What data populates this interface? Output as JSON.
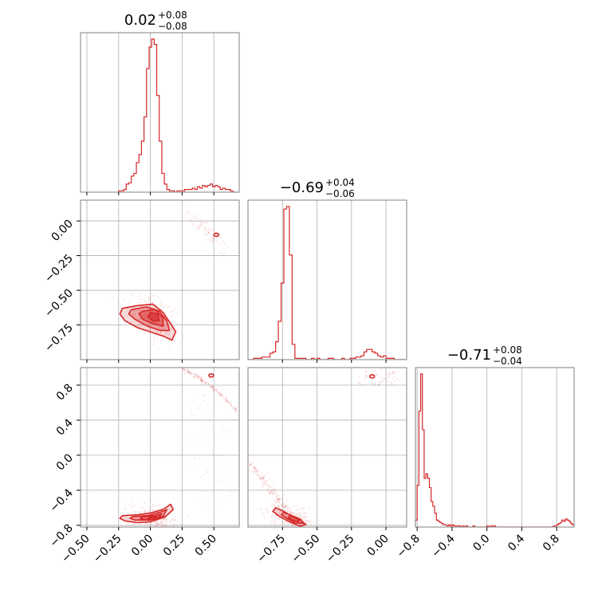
{
  "colors": {
    "series": "#d62728",
    "grid": "#b0b0b0",
    "frame": "#808080"
  },
  "chart_data": {
    "type": "corner",
    "parameters": [
      {
        "title_value": "0.02",
        "title_upper": "+0.08",
        "title_lower": "−0.08"
      },
      {
        "title_value": "−0.69",
        "title_upper": "+0.04",
        "title_lower": "−0.06"
      },
      {
        "title_value": "−0.71",
        "title_upper": "+0.08",
        "title_lower": "−0.04"
      }
    ],
    "axis_ranges": [
      [
        -0.55,
        0.7
      ],
      [
        -1.0,
        0.15
      ],
      [
        -0.82,
        1.0
      ]
    ],
    "grid": true,
    "hist1d": [
      {
        "bins": [
          -0.25,
          -0.23,
          -0.21,
          -0.19,
          -0.17,
          -0.15,
          -0.13,
          -0.11,
          -0.09,
          -0.07,
          -0.05,
          -0.03,
          -0.01,
          0.01,
          0.03,
          0.05,
          0.07,
          0.09,
          0.11,
          0.13,
          0.15,
          0.17,
          0.19,
          0.21,
          0.23,
          0.25,
          0.27,
          0.29,
          0.31,
          0.33,
          0.35,
          0.37,
          0.39,
          0.41,
          0.43,
          0.45,
          0.47,
          0.49,
          0.51,
          0.53,
          0.55,
          0.57,
          0.59,
          0.61,
          0.63,
          0.65,
          0.67
        ],
        "counts": [
          1,
          1,
          2,
          6,
          7,
          12,
          14,
          22,
          28,
          38,
          56,
          92,
          108,
          114,
          110,
          72,
          38,
          14,
          6,
          2,
          1,
          1,
          0,
          1,
          1,
          1,
          2,
          2,
          2,
          3,
          2,
          4,
          3,
          5,
          4,
          5,
          6,
          4,
          5,
          4,
          2,
          3,
          2,
          2,
          1,
          0
        ]
      },
      {
        "bins": [
          -1.0,
          -0.98,
          -0.96,
          -0.94,
          -0.92,
          -0.9,
          -0.88,
          -0.86,
          -0.84,
          -0.82,
          -0.8,
          -0.78,
          -0.76,
          -0.74,
          -0.72,
          -0.7,
          -0.68,
          -0.66,
          -0.64,
          -0.62,
          -0.6,
          -0.58,
          -0.56,
          -0.54,
          -0.52,
          -0.5,
          -0.48,
          -0.46,
          -0.44,
          -0.42,
          -0.4,
          -0.38,
          -0.36,
          -0.34,
          -0.32,
          -0.3,
          -0.28,
          -0.26,
          -0.24,
          -0.22,
          -0.2,
          -0.18,
          -0.16,
          -0.14,
          -0.12,
          -0.1,
          -0.08,
          -0.06,
          -0.04,
          -0.02,
          0.0,
          0.02,
          0.04,
          0.06,
          0.08,
          0.1,
          0.12,
          0.14
        ],
        "counts": [
          0,
          0,
          1,
          1,
          1,
          2,
          2,
          2,
          5,
          6,
          14,
          30,
          60,
          118,
          120,
          82,
          12,
          1,
          1,
          1,
          1,
          0,
          0,
          1,
          0,
          1,
          0,
          0,
          0,
          1,
          1,
          0,
          0,
          0,
          1,
          0,
          0,
          1,
          1,
          2,
          2,
          3,
          6,
          8,
          8,
          6,
          5,
          3,
          2,
          3,
          1,
          1,
          1,
          0,
          0,
          0,
          0
        ]
      },
      {
        "bins": [
          -0.82,
          -0.8,
          -0.78,
          -0.76,
          -0.74,
          -0.72,
          -0.7,
          -0.68,
          -0.66,
          -0.64,
          -0.62,
          -0.6,
          -0.58,
          -0.56,
          -0.54,
          -0.52,
          -0.5,
          -0.48,
          -0.46,
          -0.44,
          -0.42,
          -0.4,
          -0.38,
          -0.36,
          -0.34,
          -0.32,
          -0.3,
          -0.28,
          -0.26,
          -0.24,
          -0.22,
          -0.2,
          -0.18,
          -0.16,
          -0.14,
          -0.12,
          -0.1,
          -0.08,
          -0.06,
          -0.04,
          -0.02,
          0.0,
          0.02,
          0.04,
          0.06,
          0.08,
          0.1,
          0.12,
          0.14,
          0.16,
          0.18,
          0.2,
          0.22,
          0.24,
          0.26,
          0.28,
          0.3,
          0.32,
          0.34,
          0.36,
          0.38,
          0.4,
          0.42,
          0.44,
          0.46,
          0.48,
          0.5,
          0.52,
          0.54,
          0.56,
          0.58,
          0.6,
          0.62,
          0.64,
          0.66,
          0.68,
          0.7,
          0.72,
          0.74,
          0.76,
          0.78,
          0.8,
          0.82,
          0.84,
          0.86,
          0.88,
          0.9,
          0.92,
          0.94,
          0.96,
          0.98,
          1.0
        ],
        "counts": [
          6,
          36,
          100,
          132,
          84,
          42,
          46,
          42,
          34,
          22,
          18,
          12,
          6,
          5,
          4,
          3,
          2,
          2,
          1,
          2,
          1,
          2,
          1,
          1,
          1,
          1,
          0,
          1,
          0,
          1,
          0,
          0,
          0,
          1,
          0,
          0,
          0,
          0,
          0,
          0,
          0,
          1,
          0,
          1,
          1,
          1,
          0,
          0,
          0,
          0,
          0,
          0,
          0,
          0,
          0,
          0,
          0,
          0,
          0,
          0,
          0,
          0,
          0,
          0,
          0,
          0,
          0,
          0,
          0,
          0,
          0,
          0,
          0,
          0,
          0,
          0,
          0,
          0,
          0,
          1,
          1,
          2,
          3,
          4,
          6,
          5,
          7,
          6,
          5,
          3,
          2
        ]
      }
    ],
    "hist2d": [
      {
        "x_param": 0,
        "y_param": 1,
        "mode_x": 0.02,
        "mode_y": -0.69,
        "secondary_mode": [
          0.52,
          -0.1
        ],
        "contours": [
          [
            [
              -0.22,
              -0.63
            ],
            [
              -0.1,
              -0.61
            ],
            [
              0.02,
              -0.6
            ],
            [
              0.1,
              -0.66
            ],
            [
              0.16,
              -0.74
            ],
            [
              0.2,
              -0.8
            ],
            [
              0.17,
              -0.86
            ],
            [
              0.1,
              -0.83
            ],
            [
              0.0,
              -0.8
            ],
            [
              -0.1,
              -0.77
            ],
            [
              -0.2,
              -0.72
            ],
            [
              -0.24,
              -0.67
            ]
          ],
          [
            [
              -0.15,
              -0.64
            ],
            [
              -0.03,
              -0.62
            ],
            [
              0.07,
              -0.65
            ],
            [
              0.13,
              -0.72
            ],
            [
              0.15,
              -0.79
            ],
            [
              0.08,
              -0.79
            ],
            [
              -0.02,
              -0.76
            ],
            [
              -0.12,
              -0.71
            ],
            [
              -0.17,
              -0.67
            ]
          ],
          [
            [
              -0.06,
              -0.65
            ],
            [
              0.04,
              -0.64
            ],
            [
              0.1,
              -0.7
            ],
            [
              0.1,
              -0.76
            ],
            [
              0.02,
              -0.74
            ],
            [
              -0.06,
              -0.71
            ],
            [
              -0.09,
              -0.67
            ]
          ],
          [
            [
              0.0,
              -0.66
            ],
            [
              0.06,
              -0.67
            ],
            [
              0.07,
              -0.72
            ],
            [
              0.02,
              -0.72
            ],
            [
              -0.02,
              -0.69
            ]
          ]
        ]
      },
      {
        "x_param": 0,
        "y_param": 2,
        "mode_x": 0.02,
        "mode_y": -0.71,
        "secondary_mode": [
          0.48,
          0.91
        ],
        "contours": [
          [
            [
              -0.22,
              -0.69
            ],
            [
              -0.1,
              -0.68
            ],
            [
              0.0,
              -0.66
            ],
            [
              0.1,
              -0.62
            ],
            [
              0.16,
              -0.56
            ],
            [
              0.18,
              -0.62
            ],
            [
              0.12,
              -0.7
            ],
            [
              0.0,
              -0.76
            ],
            [
              -0.1,
              -0.77
            ],
            [
              -0.2,
              -0.75
            ],
            [
              -0.24,
              -0.72
            ]
          ],
          [
            [
              -0.14,
              -0.7
            ],
            [
              -0.02,
              -0.69
            ],
            [
              0.08,
              -0.65
            ],
            [
              0.13,
              -0.62
            ],
            [
              0.1,
              -0.7
            ],
            [
              0.0,
              -0.74
            ],
            [
              -0.12,
              -0.74
            ],
            [
              -0.16,
              -0.72
            ]
          ],
          [
            [
              -0.06,
              -0.7
            ],
            [
              0.04,
              -0.69
            ],
            [
              0.09,
              -0.67
            ],
            [
              0.06,
              -0.72
            ],
            [
              -0.04,
              -0.74
            ],
            [
              -0.08,
              -0.72
            ]
          ],
          [
            [
              -0.01,
              -0.71
            ],
            [
              0.05,
              -0.7
            ],
            [
              0.04,
              -0.73
            ],
            [
              -0.02,
              -0.73
            ]
          ]
        ]
      },
      {
        "x_param": 1,
        "y_param": 2,
        "mode_x": -0.69,
        "mode_y": -0.71,
        "secondary_mode": [
          -0.1,
          0.9
        ],
        "contours": [
          [
            [
              -0.8,
              -0.6
            ],
            [
              -0.74,
              -0.64
            ],
            [
              -0.68,
              -0.7
            ],
            [
              -0.62,
              -0.74
            ],
            [
              -0.58,
              -0.79
            ],
            [
              -0.62,
              -0.81
            ],
            [
              -0.7,
              -0.76
            ],
            [
              -0.77,
              -0.7
            ],
            [
              -0.82,
              -0.64
            ]
          ],
          [
            [
              -0.74,
              -0.65
            ],
            [
              -0.68,
              -0.69
            ],
            [
              -0.62,
              -0.73
            ],
            [
              -0.6,
              -0.78
            ],
            [
              -0.66,
              -0.77
            ],
            [
              -0.72,
              -0.72
            ],
            [
              -0.76,
              -0.68
            ]
          ],
          [
            [
              -0.69,
              -0.69
            ],
            [
              -0.64,
              -0.72
            ],
            [
              -0.63,
              -0.76
            ],
            [
              -0.68,
              -0.74
            ],
            [
              -0.71,
              -0.71
            ]
          ]
        ]
      }
    ],
    "ticks": [
      {
        "values": [
          -0.5,
          -0.25,
          0.0,
          0.25,
          0.5
        ],
        "labels": [
          "−0.50",
          "−0.25",
          "0.00",
          "0.25",
          "0.50"
        ]
      },
      {
        "values": [
          -0.75,
          -0.5,
          -0.25,
          0.0
        ],
        "labels": [
          "−0.75",
          "−0.50",
          "−0.25",
          "0.00"
        ],
        "y_labels": [
          "−0.75",
          "−0.50",
          "−0.25",
          "0.00"
        ]
      },
      {
        "values": [
          -0.8,
          -0.4,
          0.0,
          0.4,
          0.8
        ],
        "labels": [
          "−0.8",
          "−0.4",
          "0.0",
          "0.4",
          "0.8"
        ]
      }
    ]
  }
}
